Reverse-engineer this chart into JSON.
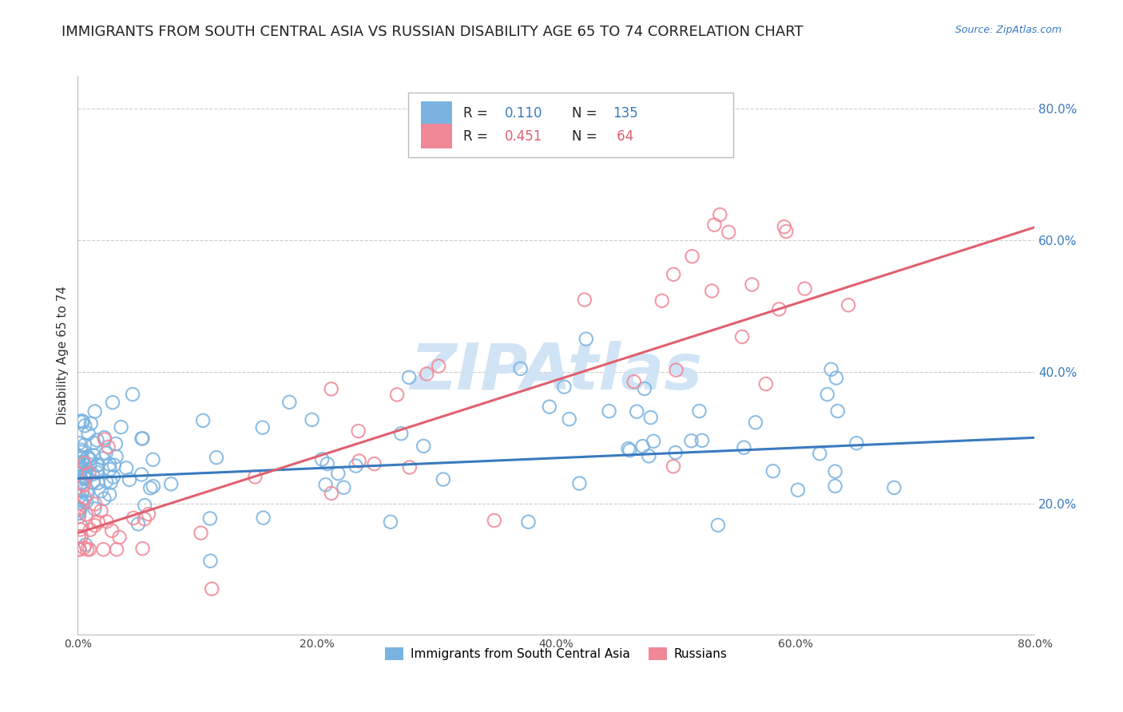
{
  "title": "IMMIGRANTS FROM SOUTH CENTRAL ASIA VS RUSSIAN DISABILITY AGE 65 TO 74 CORRELATION CHART",
  "source": "Source: ZipAtlas.com",
  "ylabel": "Disability Age 65 to 74",
  "xlim": [
    0.0,
    0.8
  ],
  "ylim": [
    0.0,
    0.85
  ],
  "xticks": [
    0.0,
    0.2,
    0.4,
    0.6,
    0.8
  ],
  "yticks": [
    0.2,
    0.4,
    0.6,
    0.8
  ],
  "xtick_labels": [
    "0.0%",
    "20.0%",
    "40.0%",
    "60.0%",
    "80.0%"
  ],
  "ytick_labels": [
    "20.0%",
    "40.0%",
    "60.0%",
    "80.0%"
  ],
  "series1_color": "#7ab3e0",
  "series2_color": "#f08898",
  "line1_color": "#3a7abf",
  "line2_color": "#e06070",
  "watermark_color": "#d0e4f5",
  "R1": "0.110",
  "N1": "135",
  "R2": "0.451",
  "N2": "64",
  "legend_label1": "Immigrants from South Central Asia",
  "legend_label2": "Russians",
  "background_color": "#ffffff",
  "grid_color": "#cccccc",
  "title_fontsize": 13,
  "axis_label_fontsize": 11,
  "tick_fontsize": 10,
  "line1_x0": 0.0,
  "line1_x1": 0.8,
  "line1_y0": 0.238,
  "line1_y1": 0.3,
  "line2_x0": 0.0,
  "line2_x1": 0.8,
  "line2_y0": 0.155,
  "line2_y1": 0.62
}
